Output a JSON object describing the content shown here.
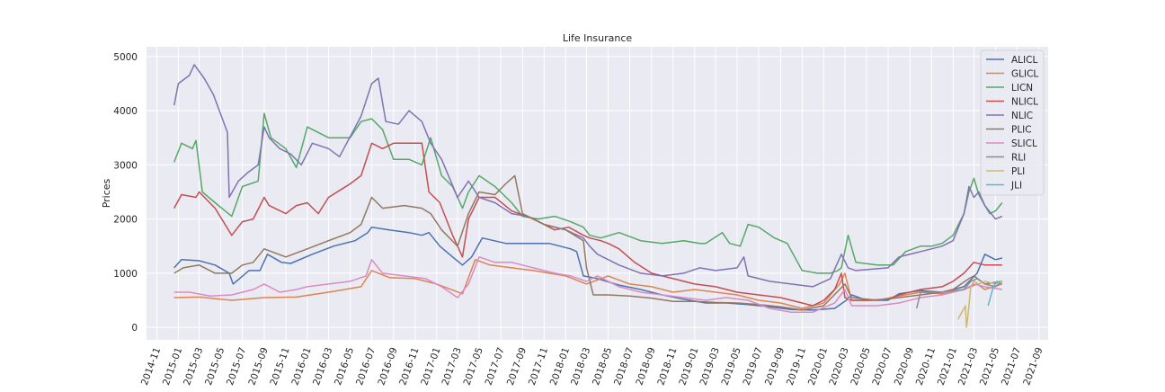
{
  "chart_data": {
    "type": "line",
    "title": "Life Insurance",
    "xlabel": "",
    "ylabel": "Prices",
    "x_ticks": [
      "2014-11",
      "2015-01",
      "2015-03",
      "2015-05",
      "2015-07",
      "2015-09",
      "2015-11",
      "2016-01",
      "2016-03",
      "2016-05",
      "2016-07",
      "2016-09",
      "2016-11",
      "2017-01",
      "2017-03",
      "2017-05",
      "2017-07",
      "2017-09",
      "2017-11",
      "2018-01",
      "2018-03",
      "2018-05",
      "2018-07",
      "2018-09",
      "2018-11",
      "2019-01",
      "2019-03",
      "2019-05",
      "2019-07",
      "2019-09",
      "2019-11",
      "2020-01",
      "2020-03",
      "2020-05",
      "2020-07",
      "2020-09",
      "2020-11",
      "2021-01",
      "2021-03",
      "2021-05",
      "2021-07",
      "2021-09"
    ],
    "y_ticks": [
      0,
      1000,
      2000,
      3000,
      4000,
      5000
    ],
    "xlim": [
      "2014-10-03",
      "2021-09-27"
    ],
    "ylim": [
      -230,
      5180
    ],
    "grid": true,
    "legend_position": "top-right",
    "series": [
      {
        "name": "ALICL",
        "color": "#4c72b0",
        "x": [
          "2014-12-20",
          "2015-01-10",
          "2015-03-01",
          "2015-04-15",
          "2015-05-25",
          "2015-06-05",
          "2015-07-20",
          "2015-08-20",
          "2015-09-10",
          "2015-10-20",
          "2015-11-15",
          "2016-01-15",
          "2016-03-15",
          "2016-05-15",
          "2016-06-20",
          "2016-07-01",
          "2016-08-20",
          "2016-10-15",
          "2016-11-20",
          "2016-12-10",
          "2017-01-10",
          "2017-02-15",
          "2017-03-15",
          "2017-04-10",
          "2017-05-10",
          "2017-07-15",
          "2017-09-10",
          "2017-11-15",
          "2018-01-15",
          "2018-02-01",
          "2018-02-20",
          "2018-04-01",
          "2018-06-01",
          "2018-08-01",
          "2018-10-01",
          "2018-12-01",
          "2019-02-01",
          "2019-04-01",
          "2019-06-01",
          "2019-08-01",
          "2019-10-01",
          "2019-12-01",
          "2020-02-01",
          "2020-03-05",
          "2020-03-20",
          "2020-05-01",
          "2020-07-01",
          "2020-08-01",
          "2020-10-01",
          "2020-12-01",
          "2021-02-01",
          "2021-03-10",
          "2021-04-01",
          "2021-05-01",
          "2021-05-20"
        ],
        "y": [
          1100,
          1250,
          1230,
          1150,
          1000,
          800,
          1050,
          1050,
          1350,
          1200,
          1180,
          1350,
          1500,
          1600,
          1750,
          1850,
          1800,
          1750,
          1700,
          1750,
          1500,
          1300,
          1150,
          1300,
          1650,
          1550,
          1550,
          1550,
          1450,
          1400,
          950,
          900,
          780,
          700,
          600,
          520,
          450,
          450,
          420,
          380,
          330,
          320,
          350,
          500,
          600,
          500,
          500,
          620,
          680,
          650,
          750,
          1000,
          1350,
          1250,
          1280
        ]
      },
      {
        "name": "GLICL",
        "color": "#dd8452",
        "x": [
          "2014-12-20",
          "2015-03-01",
          "2015-06-01",
          "2015-09-01",
          "2015-12-01",
          "2016-03-01",
          "2016-06-01",
          "2016-07-01",
          "2016-08-20",
          "2016-11-01",
          "2017-01-01",
          "2017-03-15",
          "2017-04-20",
          "2017-06-01",
          "2017-08-01",
          "2017-10-01",
          "2018-01-01",
          "2018-03-01",
          "2018-05-01",
          "2018-07-01",
          "2018-09-01",
          "2018-11-01",
          "2019-01-01",
          "2019-03-01",
          "2019-05-01",
          "2019-07-01",
          "2019-09-01",
          "2019-11-01",
          "2020-01-01",
          "2020-02-15",
          "2020-03-01",
          "2020-03-20",
          "2020-06-01",
          "2020-08-01",
          "2020-10-01",
          "2020-12-01",
          "2021-02-01",
          "2021-03-10",
          "2021-04-01",
          "2021-05-20"
        ],
        "y": [
          550,
          560,
          500,
          550,
          560,
          650,
          750,
          1050,
          920,
          900,
          800,
          620,
          1250,
          1150,
          1100,
          1050,
          950,
          800,
          950,
          800,
          750,
          650,
          700,
          650,
          600,
          500,
          450,
          350,
          450,
          800,
          1000,
          500,
          500,
          580,
          650,
          620,
          700,
          800,
          700,
          800
        ]
      },
      {
        "name": "LICN",
        "color": "#55a868",
        "x": [
          "2014-12-20",
          "2015-01-10",
          "2015-02-10",
          "2015-02-20",
          "2015-03-10",
          "2015-04-15",
          "2015-06-01",
          "2015-07-01",
          "2015-08-15",
          "2015-09-01",
          "2015-09-20",
          "2015-11-01",
          "2015-12-01",
          "2016-01-01",
          "2016-03-01",
          "2016-05-01",
          "2016-06-01",
          "2016-07-01",
          "2016-08-01",
          "2016-09-01",
          "2016-10-15",
          "2016-11-20",
          "2016-12-15",
          "2017-01-15",
          "2017-02-15",
          "2017-03-15",
          "2017-04-01",
          "2017-05-01",
          "2017-06-15",
          "2017-08-01",
          "2017-09-01",
          "2017-10-15",
          "2017-12-01",
          "2018-01-15",
          "2018-02-20",
          "2018-03-10",
          "2018-04-10",
          "2018-06-01",
          "2018-08-01",
          "2018-10-01",
          "2018-12-01",
          "2019-01-15",
          "2019-02-01",
          "2019-03-20",
          "2019-04-10",
          "2019-05-10",
          "2019-06-01",
          "2019-07-01",
          "2019-08-15",
          "2019-09-20",
          "2019-11-01",
          "2019-12-15",
          "2020-01-20",
          "2020-02-10",
          "2020-02-20",
          "2020-03-10",
          "2020-04-01",
          "2020-06-01",
          "2020-07-15",
          "2020-08-20",
          "2020-10-01",
          "2020-11-01",
          "2020-12-01",
          "2021-01-01",
          "2021-02-01",
          "2021-02-15",
          "2021-03-01",
          "2021-03-15",
          "2021-04-01",
          "2021-04-15",
          "2021-05-01",
          "2021-05-20"
        ],
        "y": [
          3050,
          3400,
          3300,
          3450,
          2500,
          2300,
          2050,
          2600,
          2700,
          3950,
          3500,
          3300,
          2950,
          3700,
          3500,
          3500,
          3800,
          3850,
          3650,
          3100,
          3100,
          3000,
          3500,
          2800,
          2600,
          2200,
          2500,
          2800,
          2600,
          2300,
          2050,
          2000,
          2050,
          1950,
          1850,
          1700,
          1650,
          1750,
          1600,
          1550,
          1600,
          1550,
          1550,
          1750,
          1550,
          1500,
          1900,
          1850,
          1650,
          1550,
          1050,
          1000,
          1000,
          1050,
          1100,
          1700,
          1200,
          1150,
          1150,
          1400,
          1500,
          1500,
          1550,
          1700,
          2100,
          2500,
          2750,
          2450,
          2250,
          2100,
          2150,
          2300
        ]
      },
      {
        "name": "NLICL",
        "color": "#c44e52",
        "x": [
          "2014-12-20",
          "2015-01-10",
          "2015-02-20",
          "2015-03-01",
          "2015-04-15",
          "2015-06-01",
          "2015-07-01",
          "2015-08-01",
          "2015-09-01",
          "2015-09-15",
          "2015-11-01",
          "2015-12-01",
          "2016-01-01",
          "2016-02-01",
          "2016-03-01",
          "2016-05-01",
          "2016-06-01",
          "2016-07-01",
          "2016-08-01",
          "2016-09-01",
          "2016-10-15",
          "2016-11-20",
          "2016-12-10",
          "2017-01-10",
          "2017-02-15",
          "2017-03-15",
          "2017-04-01",
          "2017-05-01",
          "2017-06-15",
          "2017-08-01",
          "2017-10-01",
          "2017-12-01",
          "2018-01-10",
          "2018-02-20",
          "2018-03-10",
          "2018-04-10",
          "2018-05-01",
          "2018-06-01",
          "2018-07-15",
          "2018-09-01",
          "2018-11-01",
          "2019-01-01",
          "2019-03-01",
          "2019-05-01",
          "2019-07-01",
          "2019-09-01",
          "2019-11-01",
          "2019-12-01",
          "2020-01-01",
          "2020-02-01",
          "2020-02-20",
          "2020-03-01",
          "2020-03-20",
          "2020-05-01",
          "2020-07-01",
          "2020-08-01",
          "2020-10-01",
          "2020-12-01",
          "2021-01-01",
          "2021-02-01",
          "2021-03-01",
          "2021-04-01",
          "2021-05-20"
        ],
        "y": [
          2200,
          2450,
          2400,
          2500,
          2200,
          1700,
          1950,
          2000,
          2400,
          2250,
          2100,
          2250,
          2300,
          2100,
          2400,
          2650,
          2800,
          3400,
          3300,
          3400,
          3400,
          3400,
          2500,
          2300,
          1700,
          1300,
          2000,
          2400,
          2400,
          2150,
          2000,
          1800,
          1850,
          1700,
          1650,
          1600,
          1550,
          1450,
          1200,
          1000,
          900,
          800,
          750,
          650,
          600,
          550,
          450,
          400,
          500,
          700,
          1000,
          550,
          500,
          500,
          520,
          600,
          700,
          750,
          850,
          1000,
          1200,
          1150,
          1150
        ]
      },
      {
        "name": "NLIC",
        "color": "#8172b3",
        "x": [
          "2014-12-20",
          "2015-01-01",
          "2015-02-01",
          "2015-02-15",
          "2015-03-15",
          "2015-04-10",
          "2015-05-20",
          "2015-05-25",
          "2015-06-20",
          "2015-07-15",
          "2015-08-15",
          "2015-09-01",
          "2015-09-15",
          "2015-10-15",
          "2015-11-15",
          "2015-12-15",
          "2016-01-15",
          "2016-03-01",
          "2016-04-01",
          "2016-06-01",
          "2016-07-01",
          "2016-07-20",
          "2016-08-10",
          "2016-09-15",
          "2016-10-15",
          "2016-11-20",
          "2016-12-15",
          "2017-01-15",
          "2017-03-01",
          "2017-04-01",
          "2017-05-01",
          "2017-06-15",
          "2017-08-01",
          "2017-09-15",
          "2017-11-01",
          "2018-01-01",
          "2018-02-20",
          "2018-03-10",
          "2018-04-01",
          "2018-06-01",
          "2018-08-01",
          "2018-10-01",
          "2018-12-01",
          "2019-01-15",
          "2019-03-01",
          "2019-05-01",
          "2019-05-20",
          "2019-06-01",
          "2019-08-01",
          "2019-10-01",
          "2019-12-01",
          "2020-01-20",
          "2020-02-20",
          "2020-03-10",
          "2020-04-01",
          "2020-07-01",
          "2020-08-01",
          "2020-10-01",
          "2020-12-01",
          "2021-01-01",
          "2021-02-01",
          "2021-02-15",
          "2021-03-01",
          "2021-03-15",
          "2021-04-01",
          "2021-05-01",
          "2021-05-20"
        ],
        "y": [
          4100,
          4500,
          4650,
          4850,
          4600,
          4300,
          3600,
          2400,
          2700,
          2850,
          3000,
          3700,
          3500,
          3300,
          3200,
          3000,
          3400,
          3300,
          3150,
          3900,
          4500,
          4600,
          3800,
          3750,
          4000,
          3800,
          3400,
          3100,
          2400,
          2700,
          2400,
          2300,
          2100,
          2050,
          1900,
          1800,
          1650,
          1500,
          1350,
          1150,
          1000,
          950,
          1000,
          1100,
          1050,
          1100,
          1300,
          950,
          850,
          800,
          750,
          900,
          1350,
          1100,
          1050,
          1100,
          1300,
          1400,
          1500,
          1600,
          2100,
          2600,
          2400,
          2500,
          2250,
          2000,
          2050
        ]
      },
      {
        "name": "PLIC",
        "color": "#937860",
        "x": [
          "2014-12-20",
          "2015-01-15",
          "2015-03-01",
          "2015-04-15",
          "2015-06-01",
          "2015-07-01",
          "2015-08-01",
          "2015-09-01",
          "2015-11-01",
          "2016-01-01",
          "2016-03-01",
          "2016-05-01",
          "2016-06-01",
          "2016-07-01",
          "2016-08-01",
          "2016-10-01",
          "2016-11-20",
          "2016-12-15",
          "2017-01-15",
          "2017-03-01",
          "2017-04-01",
          "2017-05-01",
          "2017-06-15",
          "2017-07-15",
          "2017-08-10",
          "2017-09-01",
          "2017-11-01",
          "2018-01-01",
          "2018-02-20",
          "2018-03-01",
          "2018-03-20",
          "2018-05-01",
          "2018-07-01",
          "2018-09-01",
          "2018-11-01",
          "2019-01-01",
          "2019-03-01",
          "2019-05-01",
          "2019-07-01",
          "2019-09-01",
          "2019-11-01",
          "2020-01-01",
          "2020-02-15",
          "2020-03-01",
          "2020-03-20",
          "2020-06-01",
          "2020-08-01",
          "2020-10-01",
          "2020-12-01",
          "2021-01-01",
          "2021-02-15",
          "2021-03-01",
          "2021-04-01",
          "2021-05-20"
        ],
        "y": [
          1000,
          1100,
          1150,
          1000,
          1000,
          1150,
          1200,
          1450,
          1300,
          1450,
          1600,
          1750,
          1900,
          2400,
          2200,
          2250,
          2200,
          2100,
          1800,
          1500,
          2100,
          2500,
          2450,
          2650,
          2800,
          2100,
          1900,
          1800,
          1600,
          1100,
          600,
          600,
          580,
          540,
          480,
          480,
          460,
          450,
          420,
          380,
          320,
          400,
          700,
          800,
          550,
          500,
          550,
          600,
          650,
          700,
          900,
          950,
          800,
          850
        ]
      },
      {
        "name": "SLICL",
        "color": "#da8bc3",
        "x": [
          "2014-12-20",
          "2015-02-01",
          "2015-04-01",
          "2015-06-01",
          "2015-08-01",
          "2015-09-01",
          "2015-10-15",
          "2015-12-01",
          "2016-01-01",
          "2016-03-01",
          "2016-05-01",
          "2016-06-15",
          "2016-07-01",
          "2016-08-01",
          "2016-10-01",
          "2016-12-01",
          "2017-01-15",
          "2017-03-01",
          "2017-04-01",
          "2017-05-01",
          "2017-06-15",
          "2017-08-01",
          "2017-10-01",
          "2017-12-01",
          "2018-01-15",
          "2018-03-01",
          "2018-04-01",
          "2018-06-01",
          "2018-08-01",
          "2018-10-01",
          "2018-12-01",
          "2019-02-01",
          "2019-04-01",
          "2019-06-01",
          "2019-08-01",
          "2019-10-01",
          "2019-12-01",
          "2020-02-01",
          "2020-03-01",
          "2020-03-20",
          "2020-06-01",
          "2020-08-01",
          "2020-10-01",
          "2020-12-01",
          "2021-02-01",
          "2021-03-01",
          "2021-04-01",
          "2021-05-20"
        ],
        "y": [
          650,
          650,
          580,
          600,
          700,
          800,
          650,
          700,
          750,
          800,
          850,
          950,
          1250,
          1000,
          950,
          900,
          750,
          550,
          800,
          1300,
          1200,
          1200,
          1100,
          1000,
          950,
          850,
          950,
          750,
          650,
          600,
          550,
          500,
          550,
          500,
          350,
          280,
          280,
          450,
          700,
          400,
          400,
          450,
          550,
          600,
          700,
          800,
          750,
          700
        ]
      },
      {
        "name": "RLI",
        "color": "#8c8c8c",
        "x": [
          "2020-09-20",
          "2020-10-01",
          "2020-11-01",
          "2020-12-01",
          "2021-01-01",
          "2021-02-01",
          "2021-02-20",
          "2021-03-10",
          "2021-04-01",
          "2021-05-01",
          "2021-05-20"
        ],
        "y": [
          350,
          650,
          650,
          650,
          680,
          700,
          850,
          900,
          800,
          750,
          850
        ]
      },
      {
        "name": "PLI",
        "color": "#ccb974",
        "x": [
          "2021-01-15",
          "2021-02-05",
          "2021-02-08",
          "2021-02-12",
          "2021-02-20",
          "2021-03-01",
          "2021-03-15",
          "2021-04-01",
          "2021-05-01",
          "2021-05-20"
        ],
        "y": [
          150,
          400,
          0,
          200,
          750,
          850,
          800,
          850,
          800,
          850
        ]
      },
      {
        "name": "JLI",
        "color": "#64b5cd",
        "x": [
          "2021-04-10",
          "2021-04-25",
          "2021-05-05",
          "2021-05-20"
        ],
        "y": [
          400,
          750,
          850,
          800
        ]
      }
    ]
  }
}
